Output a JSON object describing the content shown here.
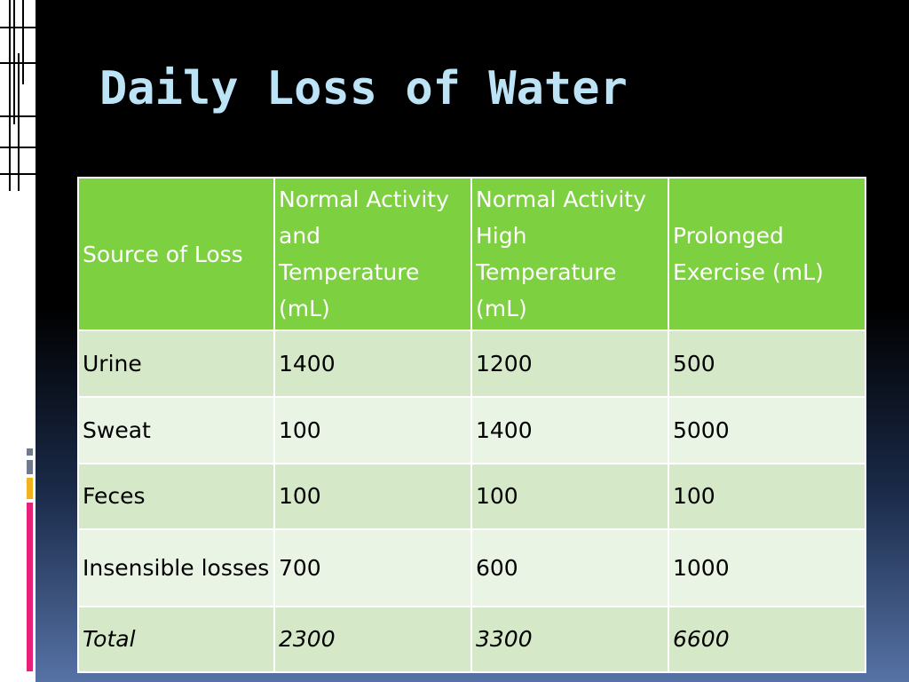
{
  "slide": {
    "title": "Daily Loss of Water"
  },
  "table": {
    "headers": [
      "Source of Loss",
      "Normal Activity and Temperature (mL)",
      "Normal Activity High Temperature (mL)",
      "Prolonged Exercise (mL)"
    ],
    "rows": [
      [
        "Urine",
        "1400",
        "1200",
        "500"
      ],
      [
        "Sweat",
        "100",
        "1400",
        "5000"
      ],
      [
        "Feces",
        "100",
        "100",
        "100"
      ],
      [
        "Insensible losses",
        "700",
        "600",
        "1000"
      ],
      [
        "Total",
        "2300",
        "3300",
        "6600"
      ]
    ]
  },
  "colors": {
    "title": "#bde3f6",
    "header_background": "#7dd03f",
    "header_text": "#ffffff",
    "row_background_odd": "#d5e9c9",
    "row_background_even": "#eaf4e5",
    "accent_gray": "#6f7b8c",
    "accent_gold": "#f2b21c",
    "accent_magenta": "#e8207a"
  }
}
